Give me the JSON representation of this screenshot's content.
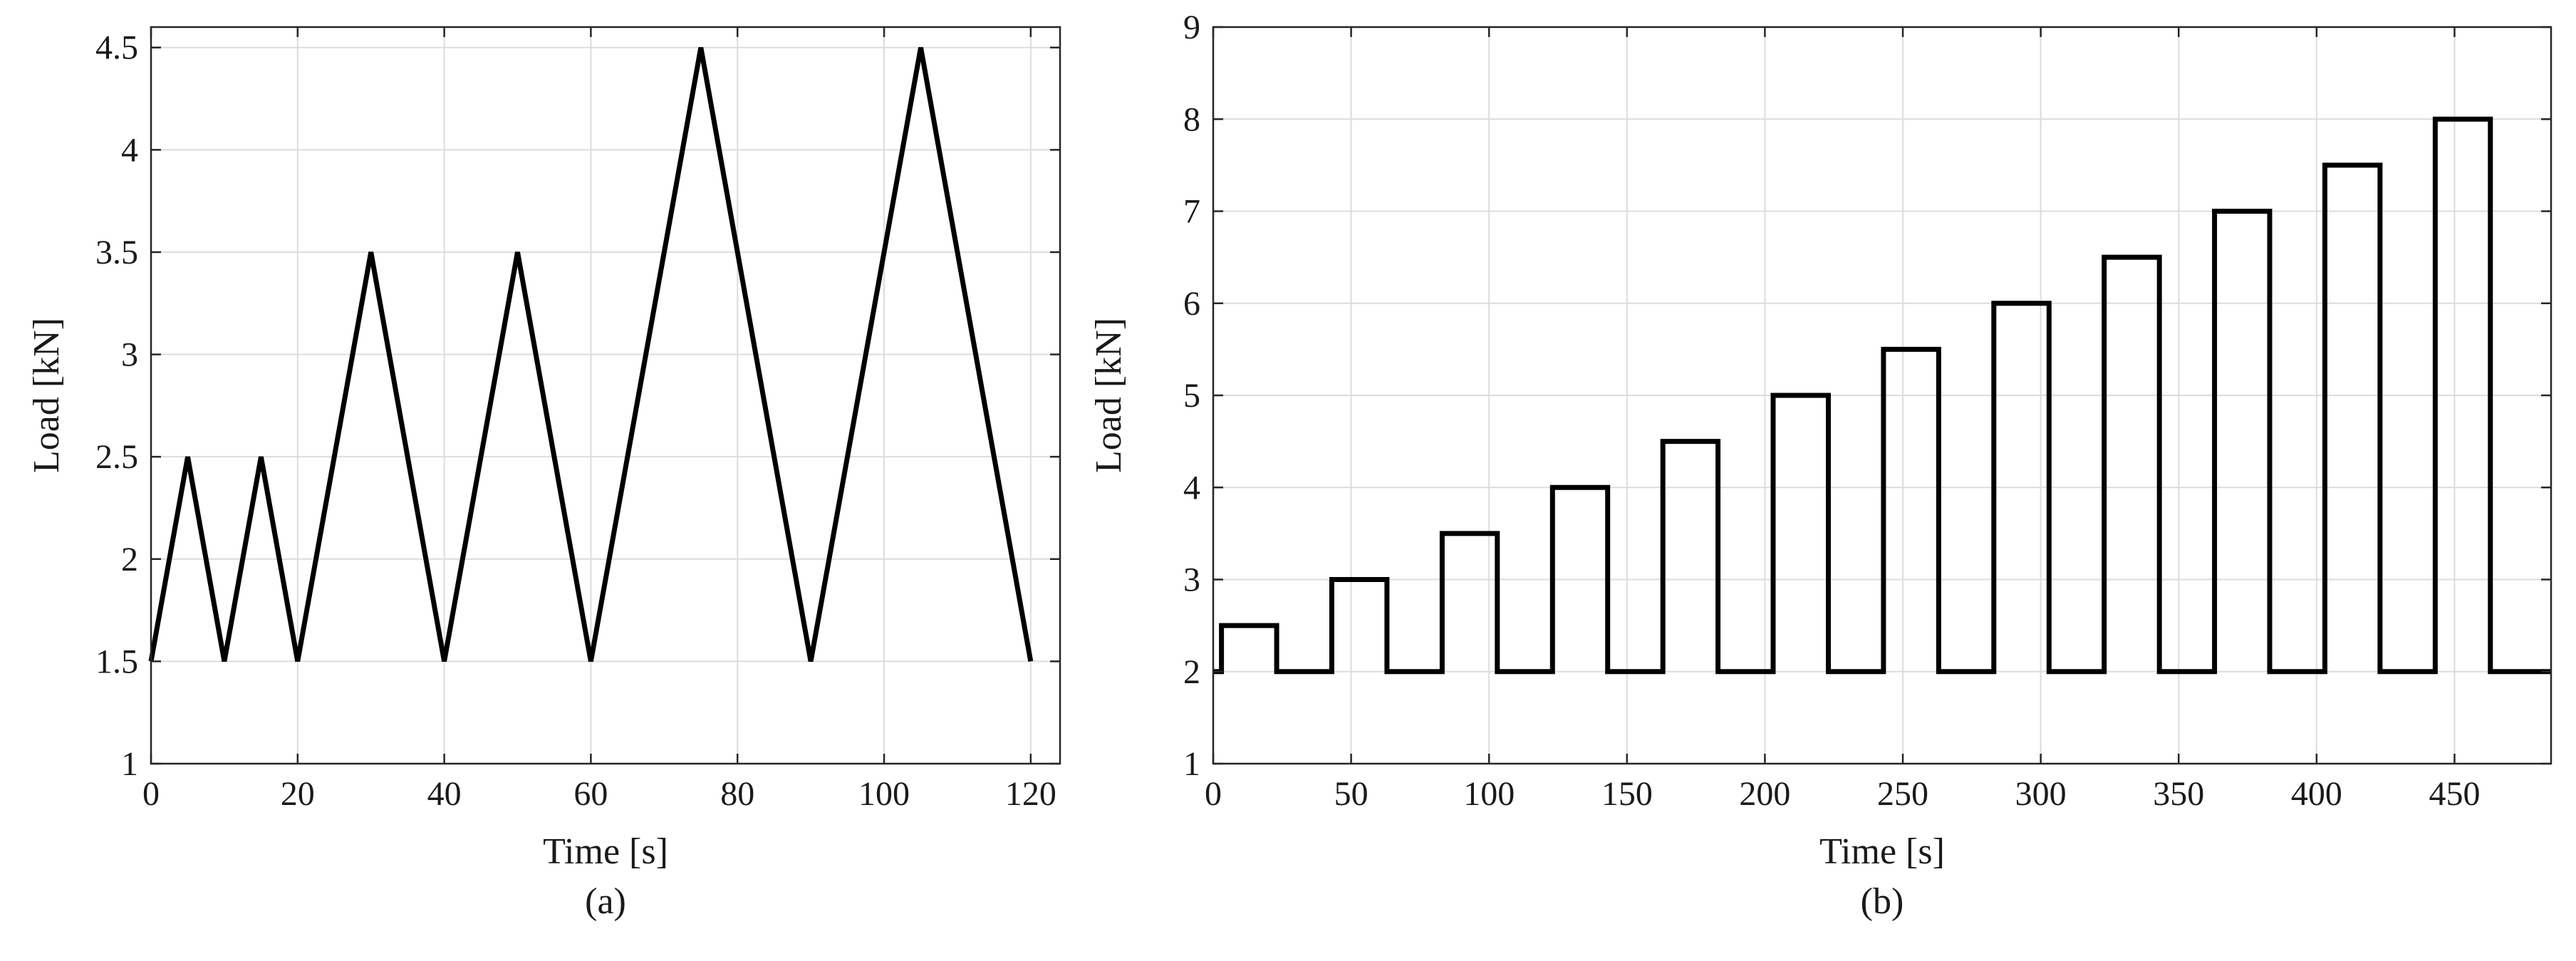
{
  "chart_data": [
    {
      "type": "line",
      "caption": "(a)",
      "xlabel": "Time [s]",
      "ylabel": "Load [kN]",
      "xlim": [
        0,
        124
      ],
      "ylim": [
        1,
        4.6
      ],
      "xticks": [
        0,
        20,
        40,
        60,
        80,
        100,
        120
      ],
      "yticks": [
        1,
        1.5,
        2,
        2.5,
        3,
        3.5,
        4,
        4.5
      ],
      "xtick_labels": [
        "0",
        "20",
        "40",
        "60",
        "80",
        "100",
        "120"
      ],
      "ytick_labels": [
        "1",
        "1.5",
        "2",
        "2.5",
        "3",
        "3.5",
        "4",
        "4.5"
      ],
      "grid": true,
      "line_color": "#000000",
      "series": [
        {
          "x": [
            0,
            5,
            10,
            15,
            20,
            30,
            40,
            50,
            60,
            75,
            90,
            105,
            120
          ],
          "y": [
            1.5,
            2.5,
            1.5,
            2.5,
            1.5,
            3.5,
            1.5,
            3.5,
            1.5,
            4.5,
            1.5,
            4.5,
            1.5
          ]
        }
      ]
    },
    {
      "type": "line",
      "caption": "(b)",
      "xlabel": "Time [s]",
      "ylabel": "Load [kN]",
      "xlim": [
        0,
        485
      ],
      "ylim": [
        1,
        9
      ],
      "xticks": [
        0,
        50,
        100,
        150,
        200,
        250,
        300,
        350,
        400,
        450
      ],
      "yticks": [
        1,
        2,
        3,
        4,
        5,
        6,
        7,
        8,
        9
      ],
      "xtick_labels": [
        "0",
        "50",
        "100",
        "150",
        "200",
        "250",
        "300",
        "350",
        "400",
        "450"
      ],
      "ytick_labels": [
        "1",
        "2",
        "3",
        "4",
        "5",
        "6",
        "7",
        "8",
        "9"
      ],
      "grid": true,
      "line_color": "#000000",
      "series": [
        {
          "x": [
            0,
            3,
            3,
            23,
            23,
            43,
            43,
            63,
            63,
            83,
            83,
            103,
            103,
            123,
            123,
            143,
            143,
            163,
            163,
            183,
            183,
            203,
            203,
            223,
            223,
            243,
            243,
            263,
            263,
            283,
            283,
            303,
            303,
            323,
            323,
            343,
            343,
            363,
            363,
            383,
            383,
            403,
            403,
            423,
            423,
            443,
            443,
            463,
            463,
            485
          ],
          "y": [
            2,
            2,
            2.5,
            2.5,
            2,
            2,
            3,
            3,
            2,
            2,
            3.5,
            3.5,
            2,
            2,
            4,
            4,
            2,
            2,
            4.5,
            4.5,
            2,
            2,
            5,
            5,
            2,
            2,
            5.5,
            5.5,
            2,
            2,
            6,
            6,
            2,
            2,
            6.5,
            6.5,
            2,
            2,
            7,
            7,
            2,
            2,
            7.5,
            7.5,
            2,
            2,
            8,
            8,
            2,
            2
          ]
        }
      ]
    }
  ]
}
